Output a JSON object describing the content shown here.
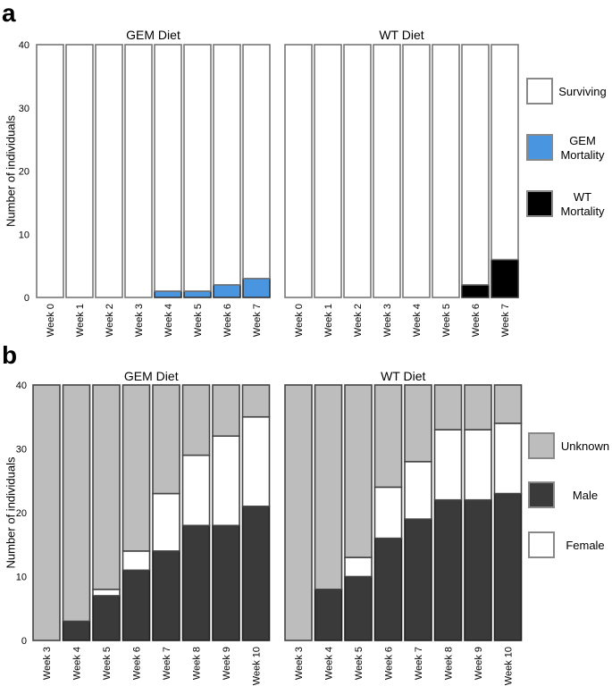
{
  "chart_data": [
    {
      "panel": "a",
      "type": "bar",
      "stacked": true,
      "ylabel": "Number of individuals",
      "ylim": [
        0,
        40
      ],
      "yticks": [
        0,
        10,
        20,
        30,
        40
      ],
      "legend_position": "right",
      "legend": [
        {
          "key": "surviving",
          "label": "Surviving",
          "color": "#ffffff"
        },
        {
          "key": "gem_mortality",
          "label": "GEM Mortality",
          "label_lines": [
            "GEM",
            "Mortality"
          ],
          "color": "#4a95e0"
        },
        {
          "key": "wt_mortality",
          "label": "WT Mortality",
          "label_lines": [
            "WT",
            "Mortality"
          ],
          "color": "#000000"
        }
      ],
      "groups": [
        {
          "title": "GEM Diet",
          "categories": [
            "Week 0",
            "Week 1",
            "Week 2",
            "Week 3",
            "Week 4",
            "Week 5",
            "Week 6",
            "Week 7"
          ],
          "series": [
            {
              "key": "gem_mortality",
              "name": "GEM Mortality",
              "values": [
                0,
                0,
                0,
                0,
                1,
                1,
                2,
                3
              ]
            },
            {
              "key": "surviving",
              "name": "Surviving",
              "values": [
                40,
                40,
                40,
                40,
                39,
                39,
                38,
                37
              ]
            }
          ]
        },
        {
          "title": "WT Diet",
          "categories": [
            "Week 0",
            "Week 1",
            "Week 2",
            "Week 3",
            "Week 4",
            "Week 5",
            "Week 6",
            "Week 7"
          ],
          "series": [
            {
              "key": "wt_mortality",
              "name": "WT Mortality",
              "values": [
                0,
                0,
                0,
                0,
                0,
                0,
                2,
                6
              ]
            },
            {
              "key": "surviving",
              "name": "Surviving",
              "values": [
                40,
                40,
                40,
                40,
                40,
                40,
                38,
                34
              ]
            }
          ]
        }
      ]
    },
    {
      "panel": "b",
      "type": "bar",
      "stacked": true,
      "ylabel": "Number of individuals",
      "ylim": [
        0,
        40
      ],
      "yticks": [
        0,
        10,
        20,
        30,
        40
      ],
      "legend_position": "right",
      "legend": [
        {
          "key": "unknown",
          "label": "Unknown",
          "color": "#bdbdbd"
        },
        {
          "key": "male",
          "label": "Male",
          "color": "#3a3a3a"
        },
        {
          "key": "female",
          "label": "Female",
          "color": "#ffffff"
        }
      ],
      "groups": [
        {
          "title": "GEM Diet",
          "categories": [
            "Week 3",
            "Week 4",
            "Week 5",
            "Week 6",
            "Week 7",
            "Week 8",
            "Week 9",
            "Week 10"
          ],
          "series": [
            {
              "key": "male",
              "name": "Male",
              "values": [
                0,
                3,
                7,
                11,
                14,
                18,
                18,
                21
              ]
            },
            {
              "key": "female",
              "name": "Female",
              "values": [
                0,
                0,
                1,
                3,
                9,
                11,
                14,
                14
              ]
            },
            {
              "key": "unknown",
              "name": "Unknown",
              "values": [
                40,
                37,
                32,
                26,
                17,
                11,
                8,
                5
              ]
            }
          ]
        },
        {
          "title": "WT Diet",
          "categories": [
            "Week 3",
            "Week 4",
            "Week 5",
            "Week 6",
            "Week 7",
            "Week 8",
            "Week 9",
            "Week 10"
          ],
          "series": [
            {
              "key": "male",
              "name": "Male",
              "values": [
                0,
                8,
                10,
                16,
                19,
                22,
                22,
                23
              ]
            },
            {
              "key": "female",
              "name": "Female",
              "values": [
                0,
                0,
                3,
                8,
                9,
                11,
                11,
                11
              ]
            },
            {
              "key": "unknown",
              "name": "Unknown",
              "values": [
                40,
                32,
                27,
                16,
                12,
                7,
                7,
                6
              ]
            }
          ]
        }
      ]
    }
  ]
}
